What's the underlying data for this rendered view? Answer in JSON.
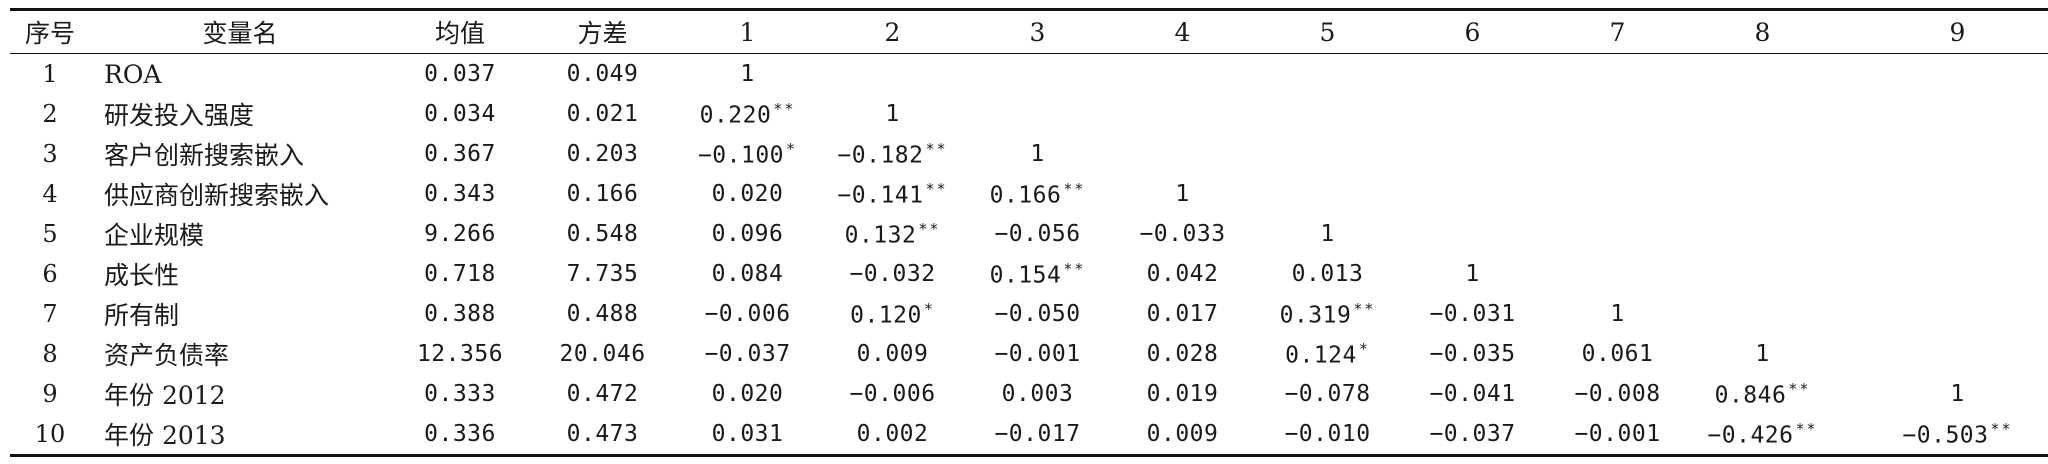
{
  "headers": [
    "序号",
    "变量名",
    "均值",
    "方差",
    "1",
    "2",
    "3",
    "4",
    "5",
    "6",
    "7",
    "8",
    "9"
  ],
  "rows": [
    {
      "idx": "1",
      "name": "ROA",
      "mean": "0.037",
      "var": "0.049",
      "cells": [
        {
          "v": "1",
          "s": ""
        }
      ]
    },
    {
      "idx": "2",
      "name": "研发投入强度",
      "mean": "0.034",
      "var": "0.021",
      "cells": [
        {
          "v": "0.220",
          "s": "**"
        },
        {
          "v": "1",
          "s": ""
        }
      ]
    },
    {
      "idx": "3",
      "name": "客户创新搜索嵌入",
      "mean": "0.367",
      "var": "0.203",
      "cells": [
        {
          "v": "−0.100",
          "s": "*"
        },
        {
          "v": "−0.182",
          "s": "**"
        },
        {
          "v": "1",
          "s": ""
        }
      ]
    },
    {
      "idx": "4",
      "name": "供应商创新搜索嵌入",
      "mean": "0.343",
      "var": "0.166",
      "cells": [
        {
          "v": "0.020",
          "s": ""
        },
        {
          "v": "−0.141",
          "s": "**"
        },
        {
          "v": "0.166",
          "s": "**"
        },
        {
          "v": "1",
          "s": ""
        }
      ]
    },
    {
      "idx": "5",
      "name": "企业规模",
      "mean": "9.266",
      "var": "0.548",
      "cells": [
        {
          "v": "0.096",
          "s": ""
        },
        {
          "v": "0.132",
          "s": "**"
        },
        {
          "v": "−0.056",
          "s": ""
        },
        {
          "v": "−0.033",
          "s": ""
        },
        {
          "v": "1",
          "s": ""
        }
      ]
    },
    {
      "idx": "6",
      "name": "成长性",
      "mean": "0.718",
      "var": "7.735",
      "cells": [
        {
          "v": "0.084",
          "s": ""
        },
        {
          "v": "−0.032",
          "s": ""
        },
        {
          "v": "0.154",
          "s": "**"
        },
        {
          "v": "0.042",
          "s": ""
        },
        {
          "v": "0.013",
          "s": ""
        },
        {
          "v": "1",
          "s": ""
        }
      ]
    },
    {
      "idx": "7",
      "name": "所有制",
      "mean": "0.388",
      "var": "0.488",
      "cells": [
        {
          "v": "−0.006",
          "s": ""
        },
        {
          "v": "0.120",
          "s": "*"
        },
        {
          "v": "−0.050",
          "s": ""
        },
        {
          "v": "0.017",
          "s": ""
        },
        {
          "v": "0.319",
          "s": "**"
        },
        {
          "v": "−0.031",
          "s": ""
        },
        {
          "v": "1",
          "s": ""
        }
      ]
    },
    {
      "idx": "8",
      "name": "资产负债率",
      "mean": "12.356",
      "var": "20.046",
      "cells": [
        {
          "v": "−0.037",
          "s": ""
        },
        {
          "v": "0.009",
          "s": ""
        },
        {
          "v": "−0.001",
          "s": ""
        },
        {
          "v": "0.028",
          "s": ""
        },
        {
          "v": "0.124",
          "s": "*"
        },
        {
          "v": "−0.035",
          "s": ""
        },
        {
          "v": "0.061",
          "s": ""
        },
        {
          "v": "1",
          "s": ""
        }
      ]
    },
    {
      "idx": "9",
      "name": "年份 2012",
      "mean": "0.333",
      "var": "0.472",
      "cells": [
        {
          "v": "0.020",
          "s": ""
        },
        {
          "v": "−0.006",
          "s": ""
        },
        {
          "v": "0.003",
          "s": ""
        },
        {
          "v": "0.019",
          "s": ""
        },
        {
          "v": "−0.078",
          "s": ""
        },
        {
          "v": "−0.041",
          "s": ""
        },
        {
          "v": "−0.008",
          "s": ""
        },
        {
          "v": "0.846",
          "s": "**"
        },
        {
          "v": "1",
          "s": ""
        }
      ]
    },
    {
      "idx": "10",
      "name": "年份 2013",
      "mean": "0.336",
      "var": "0.473",
      "cells": [
        {
          "v": "0.031",
          "s": ""
        },
        {
          "v": "0.002",
          "s": ""
        },
        {
          "v": "−0.017",
          "s": ""
        },
        {
          "v": "0.009",
          "s": ""
        },
        {
          "v": "−0.010",
          "s": ""
        },
        {
          "v": "−0.037",
          "s": ""
        },
        {
          "v": "−0.001",
          "s": ""
        },
        {
          "v": "−0.426",
          "s": "**"
        },
        {
          "v": "−0.503",
          "s": "**"
        }
      ]
    }
  ]
}
